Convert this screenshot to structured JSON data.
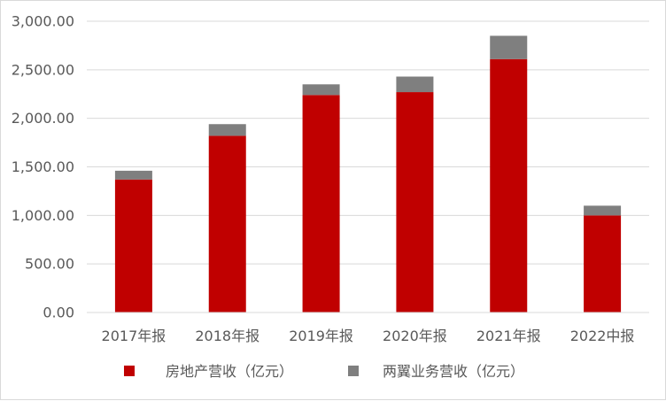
{
  "chart_data": {
    "type": "bar",
    "stacked": true,
    "categories": [
      "2017年报",
      "2018年报",
      "2019年报",
      "2020年报",
      "2021年报",
      "2022中报"
    ],
    "series": [
      {
        "name": "房地产营收（亿元）",
        "color": "#c00000",
        "values": [
          1370,
          1820,
          2240,
          2270,
          2610,
          1000
        ]
      },
      {
        "name": "两翼业务营收（亿元）",
        "color": "#7f7f7f",
        "values": [
          90,
          120,
          110,
          160,
          240,
          100
        ]
      }
    ],
    "y_ticks": [
      "0.00",
      "500.00",
      "1,000.00",
      "1,500.00",
      "2,000.00",
      "2,500.00",
      "3,000.00"
    ],
    "ylim": [
      0,
      3000
    ],
    "grid": true,
    "legend_position": "bottom",
    "title": "",
    "xlabel": "",
    "ylabel": ""
  }
}
